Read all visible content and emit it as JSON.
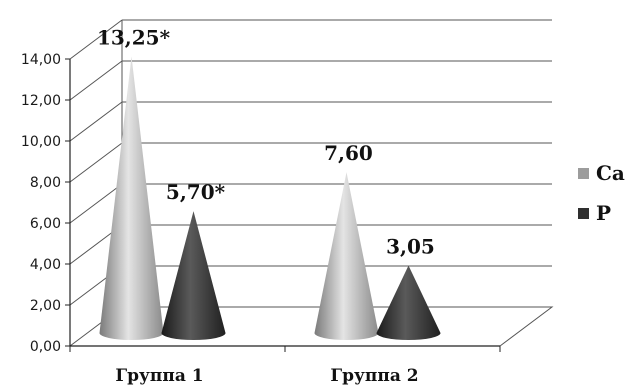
{
  "chart_data": {
    "type": "bar",
    "bar_shape": "cone",
    "projection": "3d",
    "categories": [
      "Группа 1",
      "Группа 2"
    ],
    "series": [
      {
        "name": "Ca",
        "values": [
          13.25,
          7.6
        ],
        "labels": [
          "13,25*",
          "7,60"
        ],
        "color": "#9c9c9c"
      },
      {
        "name": "P",
        "values": [
          5.7,
          3.05
        ],
        "labels": [
          "5,70*",
          "3,05"
        ],
        "color": "#2f2f2f"
      }
    ],
    "ylim": [
      0,
      14
    ],
    "yticks": [
      "0,00",
      "2,00",
      "4,00",
      "6,00",
      "8,00",
      "10,00",
      "12,00",
      "14,00"
    ],
    "grid": true,
    "legend_position": "right"
  }
}
